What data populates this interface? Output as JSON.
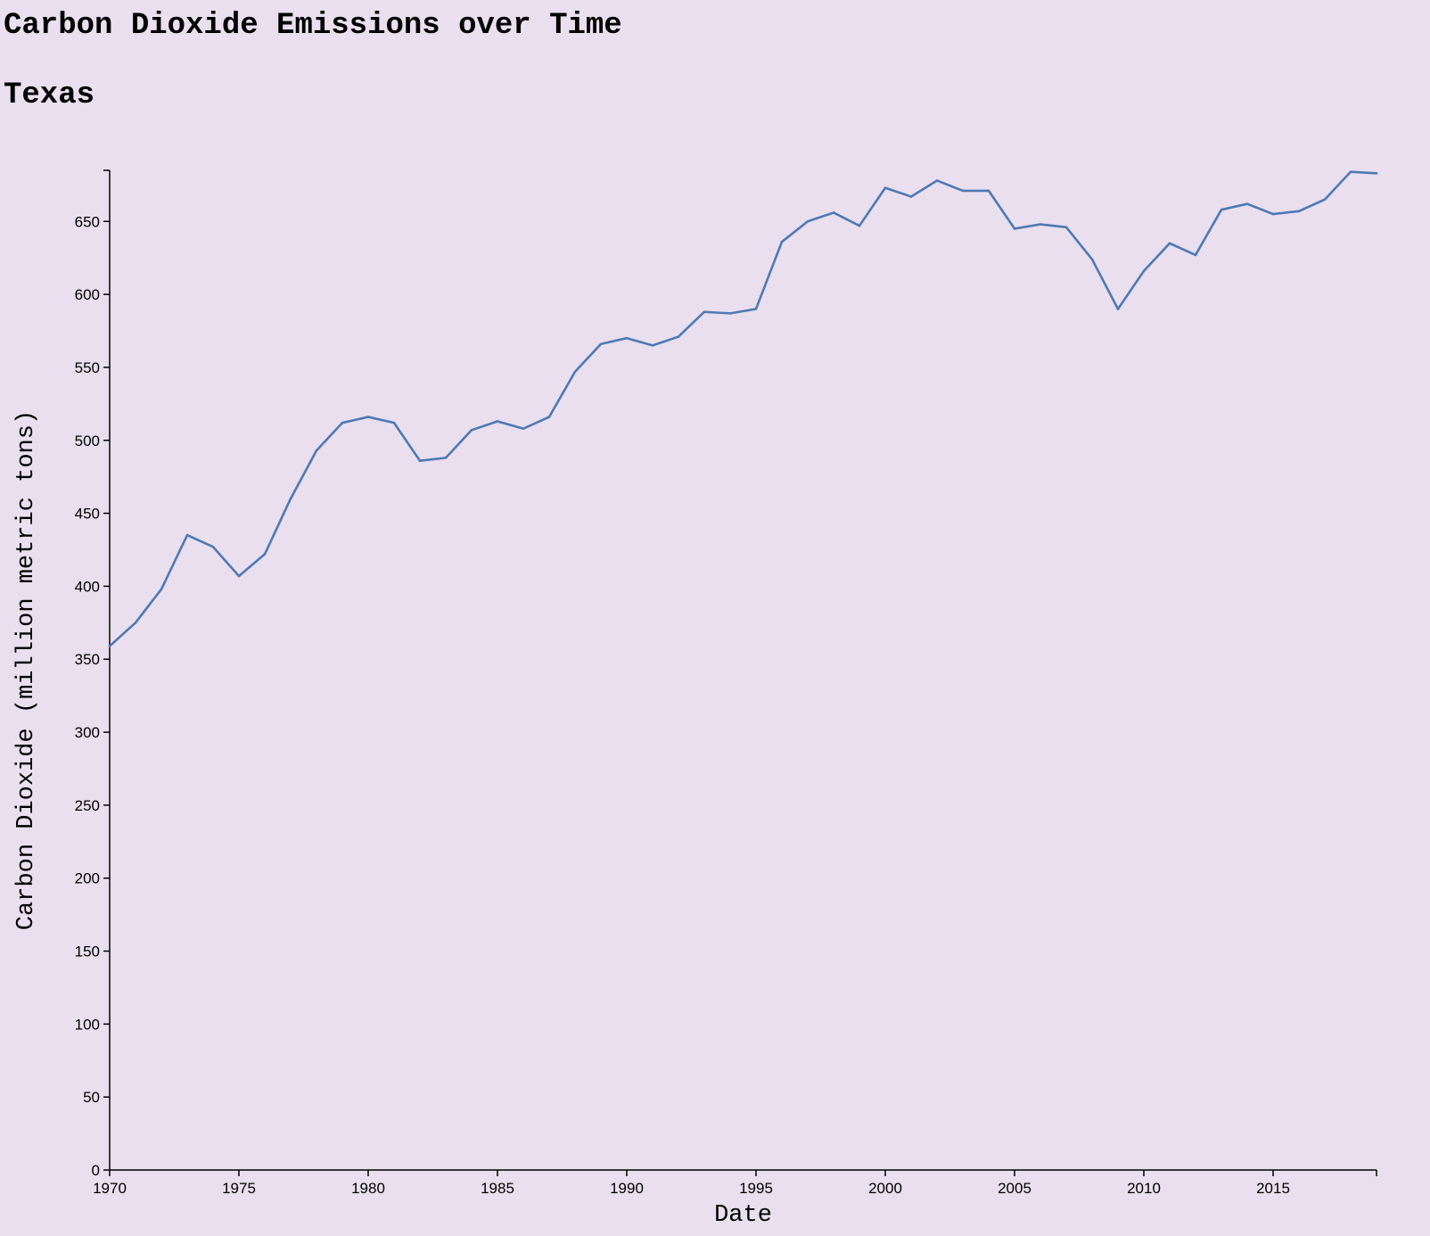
{
  "title": "Carbon Dioxide Emissions over Time",
  "subtitle": "Texas",
  "colors": {
    "background": "#eadfee",
    "line": "#4e79b3",
    "axis": "#000000"
  },
  "chart_data": {
    "type": "line",
    "title": "Carbon Dioxide Emissions over Time",
    "subtitle": "Texas",
    "xlabel": "Date",
    "ylabel": "Carbon Dioxide (million metric tons)",
    "xlim": [
      1970,
      2019
    ],
    "ylim": [
      0,
      685
    ],
    "grid": false,
    "x_ticks": [
      1970,
      1975,
      1980,
      1985,
      1990,
      1995,
      2000,
      2005,
      2010,
      2015
    ],
    "y_ticks": [
      0,
      50,
      100,
      150,
      200,
      250,
      300,
      350,
      400,
      450,
      500,
      550,
      600,
      650
    ],
    "series": [
      {
        "x": [
          1970,
          1971,
          1972,
          1973,
          1974,
          1975,
          1976,
          1977,
          1978,
          1979,
          1980,
          1981,
          1982,
          1983,
          1984,
          1985,
          1986,
          1987,
          1988,
          1989,
          1990,
          1991,
          1992,
          1993,
          1994,
          1995,
          1996,
          1997,
          1998,
          1999,
          2000,
          2001,
          2002,
          2003,
          2004,
          2005,
          2006,
          2007,
          2008,
          2009,
          2010,
          2011,
          2012,
          2013,
          2014,
          2015,
          2016,
          2017,
          2018,
          2019
        ],
        "values": [
          359,
          375,
          398,
          435,
          427,
          407,
          422,
          460,
          493,
          512,
          516,
          512,
          486,
          488,
          507,
          513,
          508,
          516,
          547,
          566,
          570,
          565,
          571,
          588,
          587,
          590,
          636,
          650,
          656,
          647,
          673,
          667,
          678,
          671,
          671,
          645,
          648,
          646,
          624,
          590,
          616,
          635,
          627,
          658,
          662,
          655,
          657,
          665,
          684,
          683
        ]
      }
    ]
  }
}
